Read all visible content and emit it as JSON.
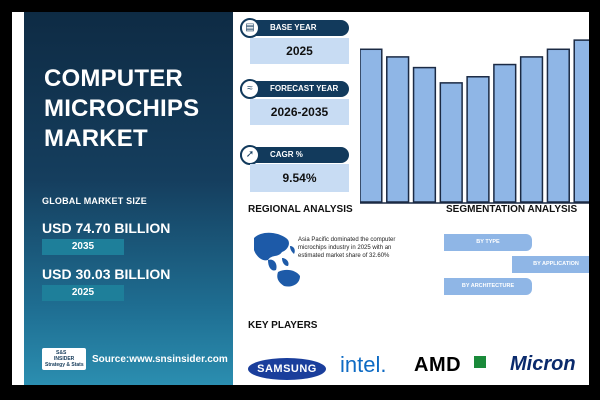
{
  "left": {
    "title_lines": [
      "COMPUTER",
      "MICROCHIPS",
      "MARKET"
    ],
    "global_label": "GLOBAL MARKET SIZE",
    "value_2035": "USD 74.70 BILLION",
    "year_2035": "2035",
    "value_2025": "USD 30.03 BILLION",
    "year_2025": "2025",
    "logo_text": [
      "S&S",
      "INSIDER",
      "Strategy & Stats"
    ],
    "source": "Source:www.snsinsider.com"
  },
  "cards": [
    {
      "label": "BASE YEAR",
      "value": "2025",
      "icon": "document-chart-icon"
    },
    {
      "label": "FORECAST YEAR",
      "value": "2026-2035",
      "icon": "line-chart-icon"
    },
    {
      "label": "CAGR %",
      "value": "9.54%",
      "icon": "growth-badge-icon"
    }
  ],
  "regional": {
    "title": "REGIONAL ANALYSIS",
    "text": "Asia Pacific dominated the computer microchips industry in 2025 with an estimated market share of 32.60%"
  },
  "segmentation": {
    "title": "SEGMENTATION ANALYSIS",
    "items": [
      "BY TYPE",
      "BY APPLICATION",
      "BY ARCHITECTURE"
    ]
  },
  "players": {
    "title": "KEY PLAYERS",
    "brands": [
      "SAMSUNG",
      "intel.",
      "AMD",
      "Micron"
    ]
  },
  "colors": {
    "navy": "#123a5c",
    "bar": "#8fb6e6",
    "card": "#c8dcf3"
  },
  "chart_data": {
    "type": "bar",
    "values": [
      100,
      95,
      88,
      78,
      82,
      90,
      95,
      100,
      106
    ],
    "ylim": [
      0,
      110
    ],
    "color": "#8fb6e6",
    "grid": false
  }
}
